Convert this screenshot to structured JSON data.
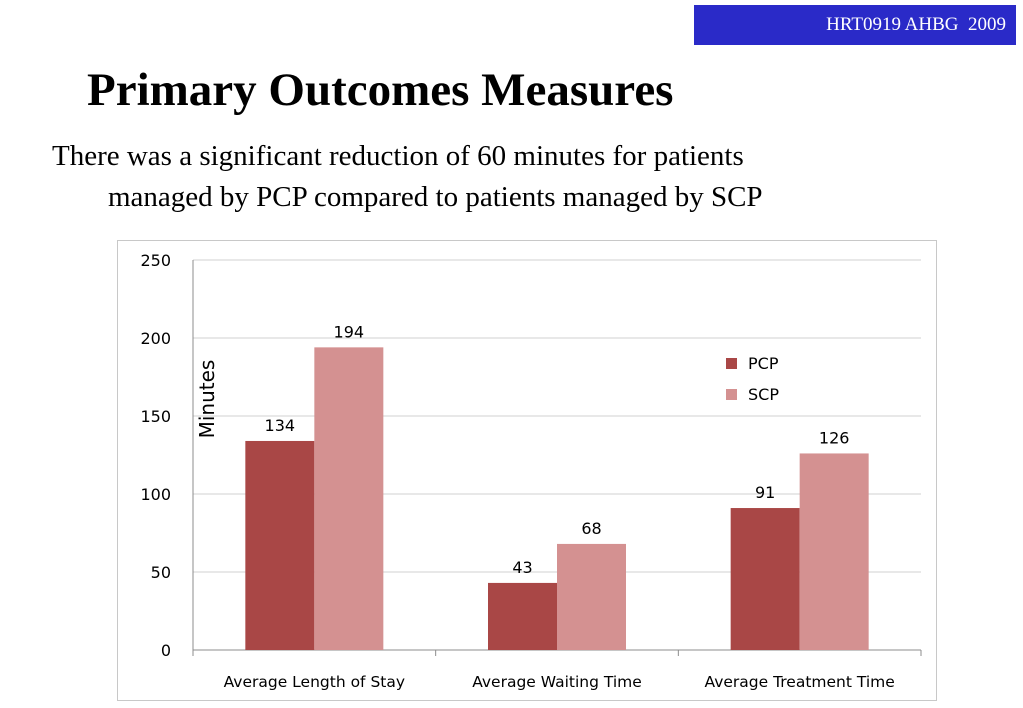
{
  "header": {
    "badge_text": "HRT0919 AHBG  2009",
    "badge_color": "#2a2ac8"
  },
  "slide": {
    "title": "Primary Outcomes Measures",
    "body_line1": "There was a significant reduction of 60 minutes for patients",
    "body_line2": "managed by PCP compared to patients managed by SCP"
  },
  "chart_data": {
    "type": "bar",
    "title": "",
    "xlabel": "",
    "ylabel": "Minutes",
    "ylim": [
      0,
      250
    ],
    "yticks": [
      0,
      50,
      100,
      150,
      200,
      250
    ],
    "grid": true,
    "legend_position": "right",
    "categories": [
      "Average Length of Stay",
      "Average Waiting Time",
      "Average Treatment Time"
    ],
    "series": [
      {
        "name": "PCP",
        "color": "#a94746",
        "values": [
          134,
          43,
          91
        ]
      },
      {
        "name": "SCP",
        "color": "#d49191",
        "values": [
          194,
          68,
          126
        ]
      }
    ],
    "data_labels": true
  }
}
